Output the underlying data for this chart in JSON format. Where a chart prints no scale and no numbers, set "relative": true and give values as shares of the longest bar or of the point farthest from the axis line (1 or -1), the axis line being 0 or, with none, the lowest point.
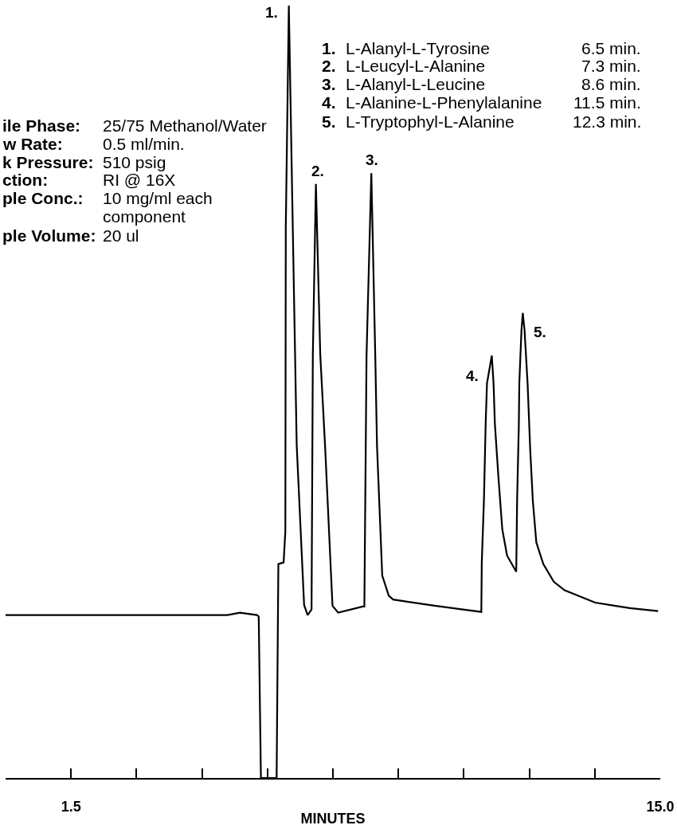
{
  "chart_data": {
    "type": "line",
    "xlabel": "MINUTES",
    "color": "#000000",
    "line_style": "solid",
    "relative": true,
    "tick_labels": "x",
    "xlim": [
      0,
      15
    ],
    "xticks": [
      1.5,
      {
        "value": 3,
        "label": null
      },
      {
        "value": 4.5,
        "label": null
      },
      {
        "value": 6,
        "label": null
      },
      {
        "value": 7.5,
        "label": null
      },
      {
        "value": 9,
        "label": null
      },
      {
        "value": 10.5,
        "label": null
      },
      {
        "value": 12,
        "label": null
      },
      {
        "value": 13.5,
        "label": null
      },
      {
        "value": 15,
        "label": "15.0"
      }
    ],
    "x": [
      0,
      5.08,
      5.37,
      5.76,
      5.8,
      5.85,
      6.21,
      6.25,
      6.37,
      6.41,
      6.42,
      6.49,
      6.58,
      6.67,
      6.84,
      6.92,
      7.01,
      7.04,
      7.11,
      7.21,
      7.32,
      7.49,
      7.62,
      8.04,
      8.18,
      8.22,
      8.27,
      8.38,
      8.47,
      8.51,
      8.63,
      8.78,
      8.88,
      9.83,
      10.9,
      10.91,
      10.96,
      11.0,
      11.03,
      11.14,
      11.18,
      11.21,
      11.29,
      11.38,
      11.49,
      11.7,
      11.72,
      11.76,
      11.77,
      11.82,
      11.85,
      11.89,
      11.96,
      12.02,
      12.08,
      12.16,
      12.32,
      12.56,
      12.81,
      13.51,
      14.3,
      14.95
    ],
    "values": [
      0.211,
      0.211,
      0.214,
      0.211,
      0.209,
      0,
      0,
      0.277,
      0.279,
      0.319,
      0.713,
      1,
      0.713,
      0.431,
      0.224,
      0.211,
      0.218,
      0.548,
      0.769,
      0.548,
      0.43,
      0.223,
      0.214,
      0.22,
      0.222,
      0.222,
      0.547,
      0.783,
      0.547,
      0.43,
      0.262,
      0.236,
      0.231,
      0.223,
      0.215,
      0.278,
      0.36,
      0.46,
      0.511,
      0.547,
      0.511,
      0.459,
      0.391,
      0.322,
      0.288,
      0.267,
      0.36,
      0.459,
      0.511,
      0.58,
      0.602,
      0.58,
      0.511,
      0.425,
      0.359,
      0.305,
      0.277,
      0.254,
      0.243,
      0.227,
      0.22,
      0.216
    ],
    "annotations": [
      "ile Phase:",
      "25/75 Methanol/Water",
      "w Rate:",
      "0.5 ml/min.",
      "k Pressure:",
      "510 psig",
      "ction:",
      "RI @ 16X",
      "ple Conc.:",
      "10 mg/ml each",
      "component",
      "ple Volume:",
      "20 ul",
      "1.",
      "L-Alanyl-L-Tyrosine",
      "6.5 min.",
      "2.",
      "L-Leucyl-L-Alanine",
      "7.3 min.",
      "3.",
      "L-Alanyl-L-Leucine",
      "8.6 min.",
      "4.",
      "L-Alanine-L-Phenylalanine",
      "11.5 min.",
      "5.",
      "L-Tryptophyl-L-Alanine",
      "12.3 min.",
      {
        "text": "1.",
        "x": 6.49,
        "y": 1
      },
      {
        "text": "2.",
        "x": 7.11,
        "y": 0.769
      },
      {
        "text": "3.",
        "x": 8.38,
        "y": 0.783
      },
      {
        "text": "4.",
        "x": 11.14,
        "y": 0.547
      },
      {
        "text": "5.",
        "x": 11.85,
        "y": 0.602
      }
    ]
  }
}
